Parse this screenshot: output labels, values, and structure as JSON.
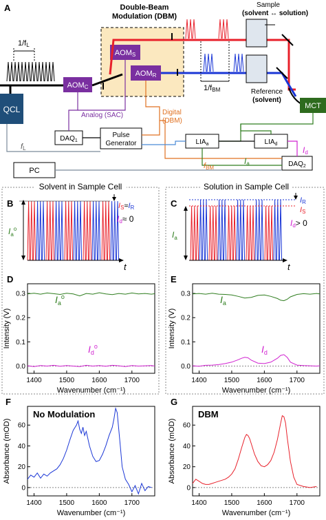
{
  "panels": {
    "A": "A",
    "B": "B",
    "C": "C",
    "D": "D",
    "E": "E",
    "F": "F",
    "G": "G"
  },
  "schematic": {
    "dbm_title_1": "Double-Beam",
    "dbm_title_2": "Modulation (DBM)",
    "sample_1": "Sample",
    "sample_2": "(solvent ↔ solution)",
    "reference_1": "Reference",
    "reference_2": "(solvent)",
    "freq_l": "1/f",
    "freq_l_sub": "L",
    "freq_bm": "1/f",
    "freq_bm_sub": "BM",
    "qcl": "QCL",
    "aom_c": "AOM",
    "aom_c_sub": "C",
    "aom_s": "AOM",
    "aom_s_sub": "S",
    "aom_r": "AOM",
    "aom_r_sub": "R",
    "mct": "MCT",
    "analog": "Analog (SAC)",
    "digital_1": "Digital",
    "digital_2": "(DBM)",
    "daq1": "DAQ",
    "daq1_sub": "1",
    "pulse_1": "Pulse",
    "pulse_2": "Generator",
    "lia_a": "LIA",
    "lia_a_sub": "a",
    "lia_d": "LIA",
    "lia_d_sub": "d",
    "daq2": "DAQ",
    "daq2_sub": "2",
    "pc": "PC",
    "f_l": "f",
    "f_l_sub": "L",
    "f_bm": "f",
    "f_bm_sub": "BM",
    "i_d": "I",
    "i_d_sub": "d",
    "i_a": "I",
    "i_a_sub": "a"
  },
  "section_b": {
    "title": "Solvent in Sample Cell",
    "ia0": "I",
    "ia0_sub": "a",
    "ia0_sup": "o",
    "eq1_is": "I",
    "eq1_is_sub": "S",
    "eq1_op": "≈",
    "eq1_ir": "I",
    "eq1_ir_sub": "R",
    "eq2_id": "I",
    "eq2_id_sub": "d",
    "eq2_rest": "≈ 0",
    "t": "t"
  },
  "section_c": {
    "title": "Solution in Sample Cell",
    "ia": "I",
    "ia_sub": "a",
    "ir": "I",
    "ir_sub": "R",
    "is": "I",
    "is_sub": "S",
    "id": "I",
    "id_sub": "d",
    "id_rest": "> 0",
    "t": "t"
  },
  "colors": {
    "red": "#e8202a",
    "blue": "#1a36d6",
    "purple": "#7a2fa0",
    "orange": "#e07020",
    "green": "#2e7d1e",
    "magenta": "#d020d0",
    "qcl": "#1f4e79",
    "mct": "#2e6b1e",
    "dbm_bg": "#fbe8bf"
  },
  "charts": [
    {
      "id": "D",
      "type": "line",
      "ylabel": "Intensity (V)",
      "xlabel": "Wavenumber (cm⁻¹)",
      "xlim": [
        1380,
        1770
      ],
      "ylim": [
        -0.03,
        0.34
      ],
      "xticks": [
        1400,
        1500,
        1600,
        1700
      ],
      "yticks": [
        0.0,
        0.1,
        0.2,
        0.3
      ],
      "ytick_labels": [
        "0.0",
        "0.1",
        "0.2",
        "0.3"
      ],
      "series_label_a": {
        "base": "I",
        "sub": "a",
        "sup": "o"
      },
      "series_label_d": {
        "base": "I",
        "sub": "d",
        "sup": "o"
      },
      "series": [
        {
          "key": "a",
          "x": [
            1380,
            1400,
            1420,
            1440,
            1460,
            1480,
            1500,
            1520,
            1540,
            1560,
            1580,
            1600,
            1620,
            1640,
            1660,
            1680,
            1700,
            1720,
            1740,
            1760,
            1770
          ],
          "y": [
            0.298,
            0.301,
            0.297,
            0.302,
            0.299,
            0.296,
            0.301,
            0.298,
            0.29,
            0.3,
            0.297,
            0.303,
            0.298,
            0.295,
            0.3,
            0.297,
            0.302,
            0.298,
            0.3,
            0.297,
            0.299
          ]
        },
        {
          "key": "d",
          "x": [
            1380,
            1400,
            1420,
            1440,
            1460,
            1480,
            1500,
            1520,
            1540,
            1560,
            1580,
            1600,
            1620,
            1640,
            1660,
            1680,
            1700,
            1720,
            1740,
            1760,
            1770
          ],
          "y": [
            0.001,
            -0.002,
            0.002,
            0.0,
            0.003,
            -0.001,
            0.002,
            0.0,
            -0.002,
            0.003,
            0.0,
            0.002,
            -0.001,
            0.003,
            0.001,
            -0.002,
            0.002,
            0.0,
            0.001,
            0.002,
            0.0
          ]
        }
      ]
    },
    {
      "id": "E",
      "type": "line",
      "ylabel": "Intensity (V)",
      "xlabel": "Wavenumber (cm⁻¹)",
      "xlim": [
        1380,
        1770
      ],
      "ylim": [
        -0.03,
        0.34
      ],
      "xticks": [
        1400,
        1500,
        1600,
        1700
      ],
      "yticks": [
        0.0,
        0.1,
        0.2,
        0.3
      ],
      "ytick_labels": [
        "0.0",
        "0.1",
        "0.2",
        "0.3"
      ],
      "series_label_a": {
        "base": "I",
        "sub": "a",
        "sup": ""
      },
      "series_label_d": {
        "base": "I",
        "sub": "d",
        "sup": ""
      },
      "series": [
        {
          "key": "a",
          "x": [
            1380,
            1400,
            1420,
            1440,
            1460,
            1480,
            1500,
            1520,
            1540,
            1560,
            1580,
            1600,
            1620,
            1640,
            1650,
            1660,
            1670,
            1680,
            1700,
            1720,
            1740,
            1760,
            1770
          ],
          "y": [
            0.298,
            0.3,
            0.297,
            0.301,
            0.297,
            0.296,
            0.294,
            0.288,
            0.281,
            0.284,
            0.292,
            0.294,
            0.288,
            0.279,
            0.272,
            0.27,
            0.276,
            0.286,
            0.296,
            0.299,
            0.297,
            0.3,
            0.298
          ]
        },
        {
          "key": "d",
          "x": [
            1380,
            1400,
            1420,
            1440,
            1460,
            1480,
            1500,
            1520,
            1530,
            1540,
            1550,
            1560,
            1580,
            1600,
            1620,
            1640,
            1650,
            1660,
            1670,
            1680,
            1700,
            1720,
            1740,
            1760,
            1770
          ],
          "y": [
            0.001,
            -0.001,
            0.003,
            0.004,
            0.006,
            0.01,
            0.016,
            0.026,
            0.032,
            0.036,
            0.034,
            0.024,
            0.012,
            0.01,
            0.016,
            0.032,
            0.044,
            0.047,
            0.036,
            0.016,
            0.004,
            0.002,
            0.001,
            0.0,
            0.001
          ]
        }
      ]
    },
    {
      "id": "F",
      "type": "line",
      "title": "No Modulation",
      "ylabel": "Absorbance (mOD)",
      "xlabel": "Wavenumber (cm⁻¹)",
      "xlim": [
        1380,
        1770
      ],
      "ylim": [
        -8,
        78
      ],
      "xticks": [
        1400,
        1500,
        1600,
        1700
      ],
      "yticks": [
        0,
        20,
        40,
        60
      ],
      "ytick_labels": [
        "0",
        "20",
        "40",
        "60"
      ],
      "series": [
        {
          "key": "f",
          "x": [
            1380,
            1390,
            1400,
            1410,
            1420,
            1430,
            1440,
            1450,
            1460,
            1470,
            1480,
            1490,
            1500,
            1510,
            1520,
            1530,
            1535,
            1540,
            1545,
            1550,
            1555,
            1560,
            1570,
            1580,
            1590,
            1600,
            1610,
            1620,
            1630,
            1640,
            1645,
            1650,
            1655,
            1660,
            1665,
            1670,
            1680,
            1690,
            1700,
            1710,
            1720,
            1730,
            1740,
            1750,
            1760
          ],
          "y": [
            8,
            12,
            10,
            14,
            9,
            13,
            11,
            14,
            16,
            18,
            22,
            28,
            36,
            46,
            55,
            60,
            64,
            56,
            52,
            58,
            50,
            54,
            40,
            30,
            25,
            26,
            32,
            40,
            50,
            58,
            66,
            76,
            72,
            55,
            38,
            20,
            8,
            3,
            -4,
            2,
            -6,
            4,
            -3,
            1,
            0
          ]
        }
      ]
    },
    {
      "id": "G",
      "type": "line",
      "title": "DBM",
      "ylabel": "Absorbance (mOD)",
      "xlabel": "Wavenumber (cm⁻¹)",
      "xlim": [
        1380,
        1770
      ],
      "ylim": [
        -8,
        78
      ],
      "xticks": [
        1400,
        1500,
        1600,
        1700
      ],
      "yticks": [
        0,
        20,
        40,
        60
      ],
      "ytick_labels": [
        "0",
        "20",
        "40",
        "60"
      ],
      "series": [
        {
          "key": "g",
          "x": [
            1380,
            1390,
            1400,
            1410,
            1420,
            1430,
            1440,
            1450,
            1460,
            1470,
            1480,
            1490,
            1500,
            1510,
            1520,
            1530,
            1540,
            1545,
            1550,
            1555,
            1560,
            1570,
            1580,
            1590,
            1600,
            1610,
            1620,
            1630,
            1640,
            1650,
            1655,
            1660,
            1665,
            1670,
            1680,
            1690,
            1700,
            1720,
            1740,
            1760
          ],
          "y": [
            4,
            8,
            6,
            4,
            3,
            3,
            4,
            5,
            6,
            7,
            8,
            10,
            13,
            18,
            27,
            38,
            48,
            51,
            50,
            47,
            42,
            32,
            25,
            21,
            20,
            22,
            26,
            34,
            46,
            62,
            69,
            68,
            62,
            48,
            25,
            10,
            3,
            1,
            0,
            1
          ]
        }
      ]
    }
  ]
}
